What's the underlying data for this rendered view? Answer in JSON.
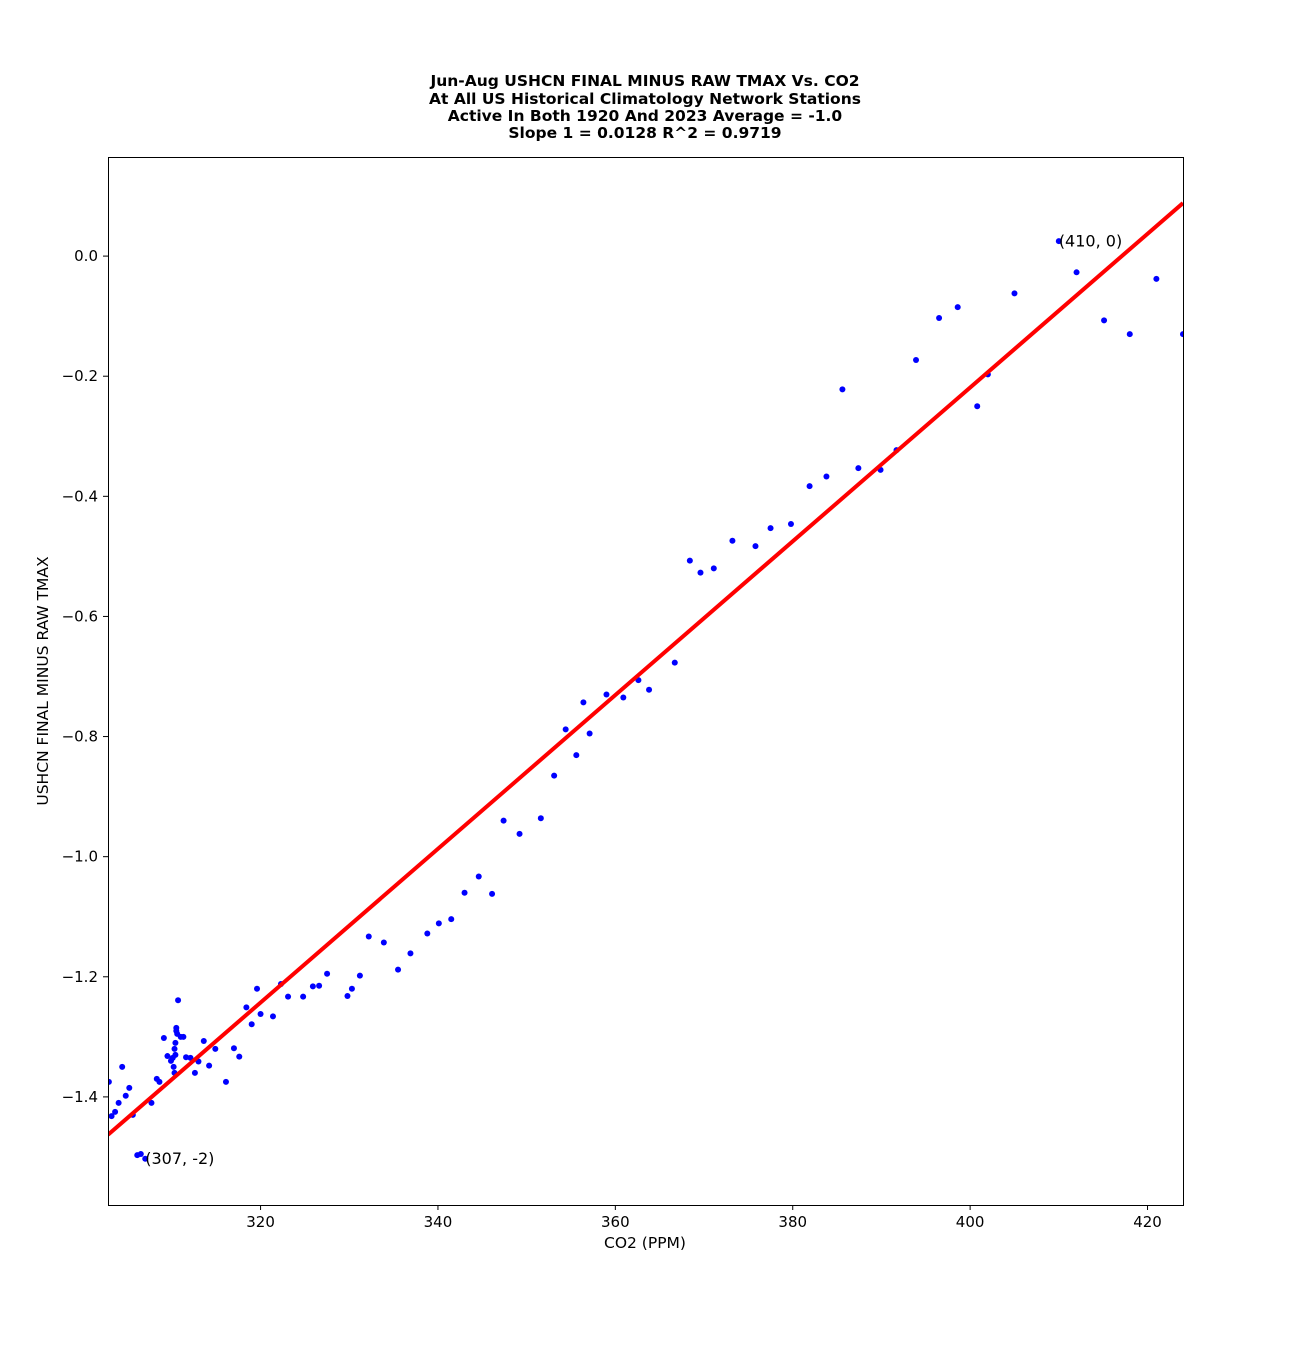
{
  "chart_data": {
    "type": "scatter",
    "title_lines": [
      "Jun-Aug USHCN FINAL MINUS RAW TMAX Vs. CO2",
      "At All US Historical Climatology Network Stations",
      "Active In Both 1920 And 2023  Average = -1.0",
      "Slope 1 = 0.0128 R^2 = 0.9719"
    ],
    "xlabel": "CO2 (PPM)",
    "ylabel": "USHCN FINAL MINUS RAW TMAX",
    "xlim": [
      302.8,
      424.0
    ],
    "ylim": [
      -1.58,
      0.165
    ],
    "xticks": [
      320,
      340,
      360,
      380,
      400,
      420
    ],
    "xtick_labels": [
      "320",
      "340",
      "360",
      "380",
      "400",
      "420"
    ],
    "yticks": [
      0.0,
      -0.2,
      -0.4,
      -0.6,
      -0.8,
      -1.0,
      -1.2,
      -1.4
    ],
    "ytick_labels": [
      "0.0",
      "−0.2",
      "−0.4",
      "−0.6",
      "−0.8",
      "−1.0",
      "−1.2",
      "−1.4"
    ],
    "grid": false,
    "point_color": "#0000ff",
    "line_color": "#ff0000",
    "trend_line": {
      "slope": 0.0128,
      "intercept": -5.3389
    },
    "annotations": [
      {
        "text": "(410, 0)",
        "x": 410.0,
        "y": 0.024
      },
      {
        "text": "(307, -2)",
        "x": 307.0,
        "y": -1.503
      }
    ],
    "points": [
      [
        302.9,
        -1.375
      ],
      [
        303.2,
        -1.432
      ],
      [
        303.6,
        -1.425
      ],
      [
        304.0,
        -1.41
      ],
      [
        304.4,
        -1.35
      ],
      [
        304.8,
        -1.398
      ],
      [
        305.2,
        -1.385
      ],
      [
        305.6,
        -1.43
      ],
      [
        306.1,
        -1.497
      ],
      [
        306.5,
        -1.495
      ],
      [
        307.0,
        -1.503
      ],
      [
        307.7,
        -1.41
      ],
      [
        308.3,
        -1.37
      ],
      [
        308.6,
        -1.375
      ],
      [
        309.1,
        -1.302
      ],
      [
        309.5,
        -1.332
      ],
      [
        309.9,
        -1.34
      ],
      [
        310.1,
        -1.335
      ],
      [
        310.2,
        -1.35
      ],
      [
        310.3,
        -1.36
      ],
      [
        310.3,
        -1.32
      ],
      [
        310.4,
        -1.33
      ],
      [
        310.4,
        -1.31
      ],
      [
        310.5,
        -1.285
      ],
      [
        310.5,
        -1.29
      ],
      [
        310.6,
        -1.295
      ],
      [
        310.7,
        -1.239
      ],
      [
        311.0,
        -1.3
      ],
      [
        311.3,
        -1.3
      ],
      [
        311.6,
        -1.334
      ],
      [
        312.1,
        -1.335
      ],
      [
        312.6,
        -1.36
      ],
      [
        313.0,
        -1.341
      ],
      [
        313.6,
        -1.307
      ],
      [
        314.2,
        -1.348
      ],
      [
        314.9,
        -1.32
      ],
      [
        316.1,
        -1.375
      ],
      [
        317.0,
        -1.319
      ],
      [
        317.6,
        -1.333
      ],
      [
        318.4,
        -1.251
      ],
      [
        319.0,
        -1.279
      ],
      [
        319.6,
        -1.22
      ],
      [
        320.0,
        -1.262
      ],
      [
        321.4,
        -1.266
      ],
      [
        322.3,
        -1.212
      ],
      [
        323.1,
        -1.233
      ],
      [
        324.8,
        -1.233
      ],
      [
        325.9,
        -1.216
      ],
      [
        326.6,
        -1.215
      ],
      [
        327.5,
        -1.195
      ],
      [
        329.8,
        -1.232
      ],
      [
        330.3,
        -1.22
      ],
      [
        331.2,
        -1.198
      ],
      [
        332.2,
        -1.133
      ],
      [
        333.9,
        -1.143
      ],
      [
        335.5,
        -1.188
      ],
      [
        336.9,
        -1.161
      ],
      [
        338.8,
        -1.128
      ],
      [
        340.1,
        -1.111
      ],
      [
        341.5,
        -1.104
      ],
      [
        343.0,
        -1.06
      ],
      [
        344.6,
        -1.033
      ],
      [
        346.1,
        -1.062
      ],
      [
        347.4,
        -0.94
      ],
      [
        349.2,
        -0.962
      ],
      [
        351.6,
        -0.936
      ],
      [
        353.1,
        -0.865
      ],
      [
        354.4,
        -0.788
      ],
      [
        355.6,
        -0.831
      ],
      [
        356.4,
        -0.743
      ],
      [
        357.1,
        -0.795
      ],
      [
        359.0,
        -0.73
      ],
      [
        360.9,
        -0.735
      ],
      [
        362.6,
        -0.706
      ],
      [
        363.8,
        -0.722
      ],
      [
        366.7,
        -0.677
      ],
      [
        368.4,
        -0.507
      ],
      [
        369.6,
        -0.527
      ],
      [
        371.1,
        -0.52
      ],
      [
        373.2,
        -0.474
      ],
      [
        375.8,
        -0.483
      ],
      [
        377.5,
        -0.453
      ],
      [
        379.8,
        -0.446
      ],
      [
        381.9,
        -0.383
      ],
      [
        383.8,
        -0.367
      ],
      [
        385.6,
        -0.222
      ],
      [
        387.4,
        -0.353
      ],
      [
        389.9,
        -0.356
      ],
      [
        391.7,
        -0.323
      ],
      [
        393.9,
        -0.173
      ],
      [
        396.5,
        -0.103
      ],
      [
        398.6,
        -0.085
      ],
      [
        400.8,
        -0.25
      ],
      [
        402.0,
        -0.197
      ],
      [
        405.0,
        -0.062
      ],
      [
        410.0,
        0.025
      ],
      [
        412.0,
        -0.027
      ],
      [
        415.1,
        -0.107
      ],
      [
        418.0,
        -0.13
      ],
      [
        421.0,
        -0.038
      ],
      [
        424.0,
        -0.13
      ]
    ]
  }
}
